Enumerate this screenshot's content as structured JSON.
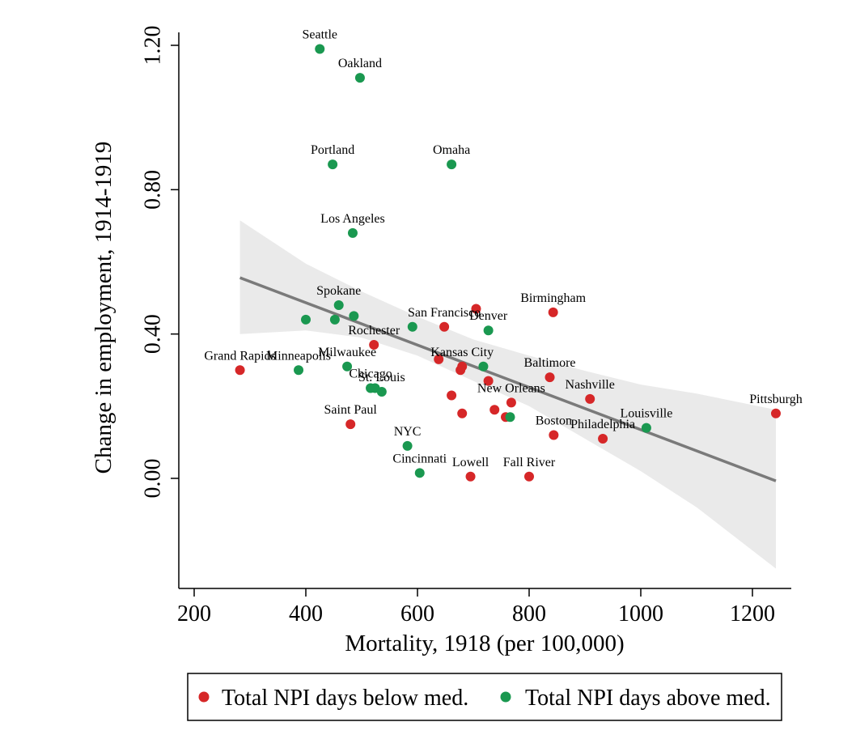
{
  "chart_data": {
    "type": "scatter",
    "xlabel": "Mortality, 1918 (per 100,000)",
    "ylabel": "Change in employment, 1914-1919",
    "xlim": [
      200,
      1270
    ],
    "ylim": [
      -0.31,
      1.27
    ],
    "x_ticks": [
      {
        "value": 200,
        "label": "200"
      },
      {
        "value": 400,
        "label": "400"
      },
      {
        "value": 600,
        "label": "600"
      },
      {
        "value": 800,
        "label": "800"
      },
      {
        "value": 1000,
        "label": "1000"
      },
      {
        "value": 1200,
        "label": "1200"
      }
    ],
    "y_ticks": [
      {
        "value": 0.0,
        "label": "0.00"
      },
      {
        "value": 0.4,
        "label": "0.40"
      },
      {
        "value": 0.8,
        "label": "0.80"
      },
      {
        "value": 1.2,
        "label": "1.20"
      }
    ],
    "colors": {
      "below": "#d62728",
      "above": "#1a9850",
      "fit": "#7a7a7a",
      "ci": "#e6e6e6"
    },
    "series": [
      {
        "name": "Total NPI days below med.",
        "key": "below",
        "points": [
          {
            "x": 282,
            "y": 0.3,
            "label": "Grand Rapids"
          },
          {
            "x": 522,
            "y": 0.37,
            "label": "Rochester"
          },
          {
            "x": 480,
            "y": 0.15,
            "label": "Saint Paul"
          },
          {
            "x": 648,
            "y": 0.42,
            "label": "San Francisco"
          },
          {
            "x": 705,
            "y": 0.47,
            "label": ""
          },
          {
            "x": 843,
            "y": 0.46,
            "label": "Birmingham"
          },
          {
            "x": 638,
            "y": 0.33,
            "label": ""
          },
          {
            "x": 680,
            "y": 0.31,
            "label": "Kansas City"
          },
          {
            "x": 677,
            "y": 0.3,
            "label": ""
          },
          {
            "x": 727,
            "y": 0.27,
            "label": ""
          },
          {
            "x": 661,
            "y": 0.23,
            "label": ""
          },
          {
            "x": 680,
            "y": 0.18,
            "label": ""
          },
          {
            "x": 738,
            "y": 0.19,
            "label": ""
          },
          {
            "x": 758,
            "y": 0.17,
            "label": ""
          },
          {
            "x": 768,
            "y": 0.21,
            "label": "New Orleans"
          },
          {
            "x": 837,
            "y": 0.28,
            "label": "Baltimore"
          },
          {
            "x": 909,
            "y": 0.22,
            "label": "Nashville"
          },
          {
            "x": 844,
            "y": 0.12,
            "label": "Boston"
          },
          {
            "x": 932,
            "y": 0.11,
            "label": "Philadelphia"
          },
          {
            "x": 695,
            "y": 0.005,
            "label": "Lowell"
          },
          {
            "x": 800,
            "y": 0.005,
            "label": "Fall River"
          },
          {
            "x": 1242,
            "y": 0.18,
            "label": "Pittsburgh"
          }
        ]
      },
      {
        "name": "Total NPI days above med.",
        "key": "above",
        "points": [
          {
            "x": 425,
            "y": 1.19,
            "label": "Seattle"
          },
          {
            "x": 497,
            "y": 1.11,
            "label": "Oakland"
          },
          {
            "x": 448,
            "y": 0.87,
            "label": "Portland"
          },
          {
            "x": 661,
            "y": 0.87,
            "label": "Omaha"
          },
          {
            "x": 484,
            "y": 0.68,
            "label": "Los Angeles"
          },
          {
            "x": 459,
            "y": 0.48,
            "label": "Spokane"
          },
          {
            "x": 400,
            "y": 0.44,
            "label": ""
          },
          {
            "x": 452,
            "y": 0.44,
            "label": ""
          },
          {
            "x": 486,
            "y": 0.45,
            "label": ""
          },
          {
            "x": 591,
            "y": 0.42,
            "label": ""
          },
          {
            "x": 727,
            "y": 0.41,
            "label": "Denver"
          },
          {
            "x": 387,
            "y": 0.3,
            "label": "Minneapolis"
          },
          {
            "x": 474,
            "y": 0.31,
            "label": "Milwaukee"
          },
          {
            "x": 516,
            "y": 0.25,
            "label": "Chicago"
          },
          {
            "x": 524,
            "y": 0.25,
            "label": ""
          },
          {
            "x": 536,
            "y": 0.24,
            "label": "St. Louis"
          },
          {
            "x": 718,
            "y": 0.31,
            "label": ""
          },
          {
            "x": 766,
            "y": 0.17,
            "label": ""
          },
          {
            "x": 582,
            "y": 0.09,
            "label": "NYC"
          },
          {
            "x": 604,
            "y": 0.015,
            "label": "Cincinnati"
          },
          {
            "x": 1010,
            "y": 0.14,
            "label": "Louisville"
          }
        ]
      }
    ],
    "fit_line": {
      "x": [
        282,
        1242
      ],
      "y": [
        0.556,
        -0.007
      ]
    },
    "ci_band": {
      "x": [
        282,
        400,
        500,
        600,
        700,
        800,
        900,
        1000,
        1100,
        1242
      ],
      "upper": [
        0.715,
        0.595,
        0.518,
        0.448,
        0.385,
        0.34,
        0.298,
        0.26,
        0.235,
        0.19
      ],
      "lower": [
        0.4,
        0.41,
        0.39,
        0.34,
        0.27,
        0.2,
        0.11,
        0.02,
        -0.08,
        -0.25
      ]
    },
    "legend_position": "bottom",
    "legend": [
      {
        "label": "Total NPI days below med.",
        "key": "below"
      },
      {
        "label": "Total NPI days above med.",
        "key": "above"
      }
    ]
  }
}
